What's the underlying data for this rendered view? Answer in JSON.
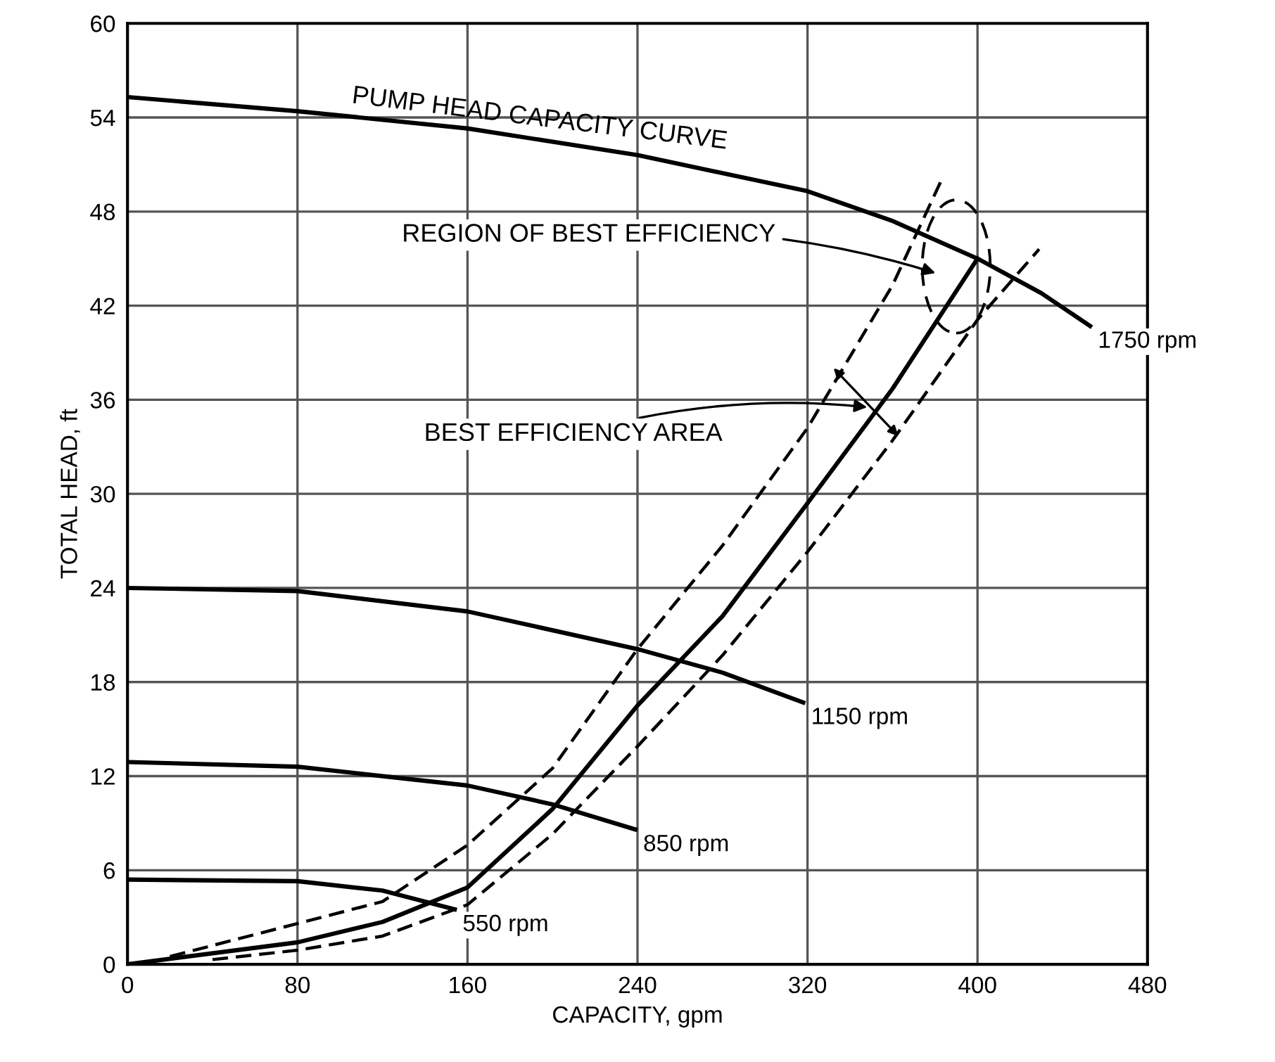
{
  "chart_data": {
    "type": "line",
    "xlabel": "CAPACITY, gpm",
    "ylabel": "TOTAL HEAD, ft",
    "xlim": [
      0,
      480
    ],
    "ylim": [
      0,
      60
    ],
    "xticks": [
      0,
      80,
      160,
      240,
      320,
      400,
      480
    ],
    "yticks": [
      0,
      6,
      12,
      18,
      24,
      30,
      36,
      42,
      48,
      54,
      60
    ],
    "grid": true,
    "marker": "none",
    "series": [
      {
        "name": "1750 rpm",
        "color": "#000000",
        "line_style": "solid",
        "x": [
          0,
          80,
          160,
          240,
          320,
          360,
          400,
          430,
          453
        ],
        "values": [
          55.3,
          54.4,
          53.3,
          51.6,
          49.3,
          47.4,
          45.0,
          42.8,
          40.7
        ]
      },
      {
        "name": "1150 rpm",
        "color": "#000000",
        "line_style": "solid",
        "x": [
          0,
          80,
          160,
          240,
          280,
          318
        ],
        "values": [
          24.0,
          23.8,
          22.5,
          20.1,
          18.6,
          16.7
        ]
      },
      {
        "name": "850 rpm",
        "color": "#000000",
        "line_style": "solid",
        "x": [
          0,
          80,
          160,
          200,
          239
        ],
        "values": [
          12.9,
          12.6,
          11.4,
          10.2,
          8.6
        ]
      },
      {
        "name": "550 rpm",
        "color": "#000000",
        "line_style": "solid",
        "x": [
          0,
          80,
          120,
          154
        ],
        "values": [
          5.4,
          5.3,
          4.7,
          3.5
        ]
      },
      {
        "color": "#000000",
        "line_style": "solid",
        "x": [
          0,
          80,
          120,
          160,
          200,
          240,
          280,
          320,
          360,
          400
        ],
        "values": [
          0,
          1.4,
          2.7,
          4.9,
          9.9,
          16.5,
          22.2,
          29.4,
          36.7,
          45.0
        ]
      },
      {
        "color": "#000000",
        "line_style": "dashed",
        "x": [
          20,
          80,
          120,
          160,
          200,
          240,
          280,
          320,
          360,
          383
        ],
        "values": [
          0.5,
          2.6,
          4.0,
          7.6,
          12.5,
          20.1,
          26.7,
          34.2,
          43.3,
          50.0
        ]
      },
      {
        "color": "#000000",
        "line_style": "dashed",
        "x": [
          40,
          80,
          120,
          160,
          200,
          240,
          280,
          320,
          360,
          400,
          429
        ],
        "values": [
          0.3,
          0.9,
          1.8,
          3.8,
          8.3,
          13.9,
          19.7,
          26.3,
          33.4,
          41.1,
          45.6
        ]
      }
    ],
    "annotations": [
      "PUMP HEAD CAPACITY CURVE",
      "REGION OF BEST EFFICIENCY",
      "BEST EFFICIENCY AREA"
    ]
  }
}
